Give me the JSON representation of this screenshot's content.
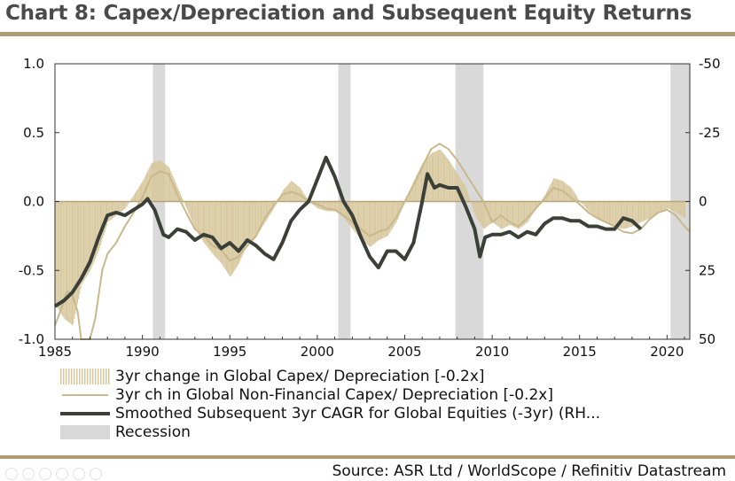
{
  "title": "Chart 8: Capex/Depreciation and Subsequent Equity Returns",
  "source": "Source: ASR Ltd / WorldScope / Refinitiv Datastream",
  "colors": {
    "bars": "#d8c89e",
    "thin_line": "#c9b88c",
    "thick_line": "#3a4038",
    "recession": "#d9d9d9",
    "rule": "#b09c73"
  },
  "chart_data": {
    "type": "line",
    "x_ticks": [
      1985,
      1990,
      1995,
      2000,
      2005,
      2010,
      2015,
      2020
    ],
    "y_left_ticks": [
      "1.0",
      "0.5",
      "0.0",
      "-0.5",
      "-1.0"
    ],
    "y_right_ticks": [
      "-50",
      "-25",
      "0",
      "25",
      "50"
    ],
    "xlim": [
      1985,
      2021.3
    ],
    "ylim_left": [
      -1.0,
      1.0
    ],
    "ylim_right": [
      -50,
      50
    ],
    "recessions": [
      [
        1990.6,
        1991.3
      ],
      [
        2001.2,
        2001.9
      ],
      [
        2007.9,
        2009.5
      ],
      [
        2020.2,
        2021.3
      ]
    ],
    "legend_position": "bottom",
    "series": [
      {
        "name": "3yr change in Global Capex/ Depreciation [-0.2x]",
        "kind": "bars",
        "axis": "left",
        "points": [
          [
            1985.0,
            -0.75
          ],
          [
            1985.5,
            -0.85
          ],
          [
            1986.0,
            -0.9
          ],
          [
            1986.5,
            -0.6
          ],
          [
            1987.0,
            -0.5
          ],
          [
            1987.5,
            -0.35
          ],
          [
            1988.0,
            -0.15
          ],
          [
            1988.5,
            -0.1
          ],
          [
            1989.0,
            -0.05
          ],
          [
            1989.5,
            0.05
          ],
          [
            1990.0,
            0.15
          ],
          [
            1990.5,
            0.28
          ],
          [
            1991.0,
            0.3
          ],
          [
            1991.5,
            0.25
          ],
          [
            1992.0,
            0.1
          ],
          [
            1992.5,
            -0.05
          ],
          [
            1993.0,
            -0.2
          ],
          [
            1993.5,
            -0.3
          ],
          [
            1994.0,
            -0.38
          ],
          [
            1994.5,
            -0.45
          ],
          [
            1995.0,
            -0.55
          ],
          [
            1995.5,
            -0.45
          ],
          [
            1996.0,
            -0.3
          ],
          [
            1996.5,
            -0.25
          ],
          [
            1997.0,
            -0.15
          ],
          [
            1997.5,
            -0.05
          ],
          [
            1998.0,
            0.08
          ],
          [
            1998.5,
            0.15
          ],
          [
            1999.0,
            0.1
          ],
          [
            1999.5,
            0.0
          ],
          [
            2000.0,
            -0.05
          ],
          [
            2000.5,
            -0.07
          ],
          [
            2001.0,
            -0.07
          ],
          [
            2001.5,
            -0.12
          ],
          [
            2002.0,
            -0.2
          ],
          [
            2002.5,
            -0.28
          ],
          [
            2003.0,
            -0.33
          ],
          [
            2003.5,
            -0.28
          ],
          [
            2004.0,
            -0.25
          ],
          [
            2004.5,
            -0.15
          ],
          [
            2005.0,
            0.0
          ],
          [
            2005.5,
            0.15
          ],
          [
            2006.0,
            0.28
          ],
          [
            2006.5,
            0.35
          ],
          [
            2007.0,
            0.38
          ],
          [
            2007.5,
            0.3
          ],
          [
            2008.0,
            0.2
          ],
          [
            2008.5,
            0.1
          ],
          [
            2009.0,
            -0.1
          ],
          [
            2009.5,
            -0.2
          ],
          [
            2010.0,
            -0.15
          ],
          [
            2010.5,
            -0.2
          ],
          [
            2011.0,
            -0.17
          ],
          [
            2011.5,
            -0.2
          ],
          [
            2012.0,
            -0.15
          ],
          [
            2012.5,
            -0.05
          ],
          [
            2013.0,
            0.05
          ],
          [
            2013.5,
            0.17
          ],
          [
            2014.0,
            0.15
          ],
          [
            2014.5,
            0.1
          ],
          [
            2015.0,
            0.0
          ],
          [
            2015.5,
            -0.07
          ],
          [
            2016.0,
            -0.12
          ],
          [
            2016.5,
            -0.15
          ],
          [
            2017.0,
            -0.18
          ],
          [
            2017.5,
            -0.2
          ],
          [
            2018.0,
            -0.18
          ],
          [
            2018.5,
            -0.15
          ],
          [
            2019.0,
            -0.12
          ],
          [
            2019.5,
            -0.08
          ],
          [
            2020.0,
            -0.05
          ],
          [
            2020.5,
            -0.08
          ],
          [
            2021.0,
            -0.12
          ]
        ]
      },
      {
        "name": "3yr ch in Global Non-Financial Capex/ Depreciation [-0.2x]",
        "kind": "line",
        "axis": "left",
        "points": [
          [
            1985.0,
            -0.9
          ],
          [
            1985.3,
            -0.8
          ],
          [
            1985.7,
            -0.65
          ],
          [
            1986.0,
            -0.68
          ],
          [
            1986.3,
            -0.8
          ],
          [
            1986.5,
            -1.0
          ],
          [
            1987.0,
            -1.0
          ],
          [
            1987.3,
            -0.85
          ],
          [
            1987.7,
            -0.5
          ],
          [
            1988.0,
            -0.38
          ],
          [
            1988.5,
            -0.3
          ],
          [
            1989.0,
            -0.18
          ],
          [
            1989.5,
            -0.08
          ],
          [
            1990.0,
            0.03
          ],
          [
            1990.5,
            0.18
          ],
          [
            1991.0,
            0.22
          ],
          [
            1991.5,
            0.2
          ],
          [
            1992.0,
            0.05
          ],
          [
            1992.5,
            -0.08
          ],
          [
            1993.0,
            -0.2
          ],
          [
            1993.5,
            -0.25
          ],
          [
            1994.0,
            -0.32
          ],
          [
            1994.5,
            -0.35
          ],
          [
            1995.0,
            -0.43
          ],
          [
            1995.5,
            -0.4
          ],
          [
            1996.0,
            -0.32
          ],
          [
            1996.5,
            -0.25
          ],
          [
            1997.0,
            -0.12
          ],
          [
            1997.5,
            -0.03
          ],
          [
            1998.0,
            0.05
          ],
          [
            1998.5,
            0.07
          ],
          [
            1999.0,
            0.05
          ],
          [
            1999.5,
            0.0
          ],
          [
            2000.0,
            -0.02
          ],
          [
            2000.5,
            -0.05
          ],
          [
            2001.0,
            -0.06
          ],
          [
            2001.5,
            -0.1
          ],
          [
            2002.0,
            -0.15
          ],
          [
            2002.5,
            -0.2
          ],
          [
            2003.0,
            -0.25
          ],
          [
            2003.5,
            -0.22
          ],
          [
            2004.0,
            -0.2
          ],
          [
            2004.5,
            -0.12
          ],
          [
            2005.0,
            0.0
          ],
          [
            2005.5,
            0.12
          ],
          [
            2006.0,
            0.25
          ],
          [
            2006.5,
            0.38
          ],
          [
            2007.0,
            0.42
          ],
          [
            2007.5,
            0.38
          ],
          [
            2008.0,
            0.3
          ],
          [
            2008.5,
            0.2
          ],
          [
            2009.0,
            0.1
          ],
          [
            2009.5,
            0.0
          ],
          [
            2010.0,
            -0.15
          ],
          [
            2010.5,
            -0.1
          ],
          [
            2011.0,
            -0.15
          ],
          [
            2011.5,
            -0.18
          ],
          [
            2012.0,
            -0.12
          ],
          [
            2012.5,
            -0.05
          ],
          [
            2013.0,
            0.02
          ],
          [
            2013.5,
            0.1
          ],
          [
            2014.0,
            0.08
          ],
          [
            2014.5,
            0.03
          ],
          [
            2015.0,
            -0.02
          ],
          [
            2015.5,
            -0.08
          ],
          [
            2016.0,
            -0.12
          ],
          [
            2016.5,
            -0.15
          ],
          [
            2017.0,
            -0.18
          ],
          [
            2017.5,
            -0.22
          ],
          [
            2018.0,
            -0.23
          ],
          [
            2018.5,
            -0.2
          ],
          [
            2019.0,
            -0.13
          ],
          [
            2019.5,
            -0.08
          ],
          [
            2020.0,
            -0.06
          ],
          [
            2020.5,
            -0.1
          ],
          [
            2021.0,
            -0.18
          ],
          [
            2021.3,
            -0.22
          ]
        ]
      },
      {
        "name": "Smoothed Subsequent 3yr CAGR for Global Equities (-3yr) (RH...",
        "kind": "line",
        "axis": "right",
        "points": [
          [
            1985.0,
            38
          ],
          [
            1985.5,
            36
          ],
          [
            1986.0,
            33
          ],
          [
            1986.5,
            28
          ],
          [
            1987.0,
            22
          ],
          [
            1987.5,
            13
          ],
          [
            1988.0,
            5
          ],
          [
            1988.5,
            4
          ],
          [
            1989.0,
            5
          ],
          [
            1989.5,
            3
          ],
          [
            1990.0,
            1
          ],
          [
            1990.3,
            -1
          ],
          [
            1990.7,
            3
          ],
          [
            1991.2,
            12
          ],
          [
            1991.5,
            13
          ],
          [
            1992.0,
            10
          ],
          [
            1992.5,
            11
          ],
          [
            1993.0,
            14
          ],
          [
            1993.5,
            12
          ],
          [
            1994.0,
            13
          ],
          [
            1994.5,
            17
          ],
          [
            1995.0,
            15
          ],
          [
            1995.5,
            18
          ],
          [
            1996.0,
            14
          ],
          [
            1996.5,
            16
          ],
          [
            1997.0,
            19
          ],
          [
            1997.5,
            21
          ],
          [
            1998.0,
            15
          ],
          [
            1998.5,
            7
          ],
          [
            1999.0,
            3
          ],
          [
            1999.5,
            0
          ],
          [
            2000.0,
            -8
          ],
          [
            2000.5,
            -16
          ],
          [
            2001.0,
            -9
          ],
          [
            2001.5,
            0
          ],
          [
            2002.0,
            5
          ],
          [
            2002.5,
            13
          ],
          [
            2003.0,
            20
          ],
          [
            2003.5,
            24
          ],
          [
            2004.0,
            18
          ],
          [
            2004.5,
            18
          ],
          [
            2005.0,
            21
          ],
          [
            2005.5,
            15
          ],
          [
            2006.0,
            0
          ],
          [
            2006.3,
            -10
          ],
          [
            2006.7,
            -5
          ],
          [
            2007.0,
            -6
          ],
          [
            2007.5,
            -5
          ],
          [
            2008.0,
            -5
          ],
          [
            2008.5,
            2
          ],
          [
            2009.0,
            10
          ],
          [
            2009.3,
            20
          ],
          [
            2009.6,
            13
          ],
          [
            2010.0,
            12
          ],
          [
            2010.5,
            12
          ],
          [
            2011.0,
            11
          ],
          [
            2011.5,
            13
          ],
          [
            2012.0,
            11
          ],
          [
            2012.5,
            12
          ],
          [
            2013.0,
            8
          ],
          [
            2013.5,
            6
          ],
          [
            2014.0,
            6
          ],
          [
            2014.5,
            7
          ],
          [
            2015.0,
            7
          ],
          [
            2015.5,
            9
          ],
          [
            2016.0,
            9
          ],
          [
            2016.5,
            10
          ],
          [
            2017.0,
            10
          ],
          [
            2017.5,
            6
          ],
          [
            2018.0,
            7
          ],
          [
            2018.5,
            10
          ]
        ]
      },
      {
        "name": "Recession",
        "kind": "band"
      }
    ]
  }
}
